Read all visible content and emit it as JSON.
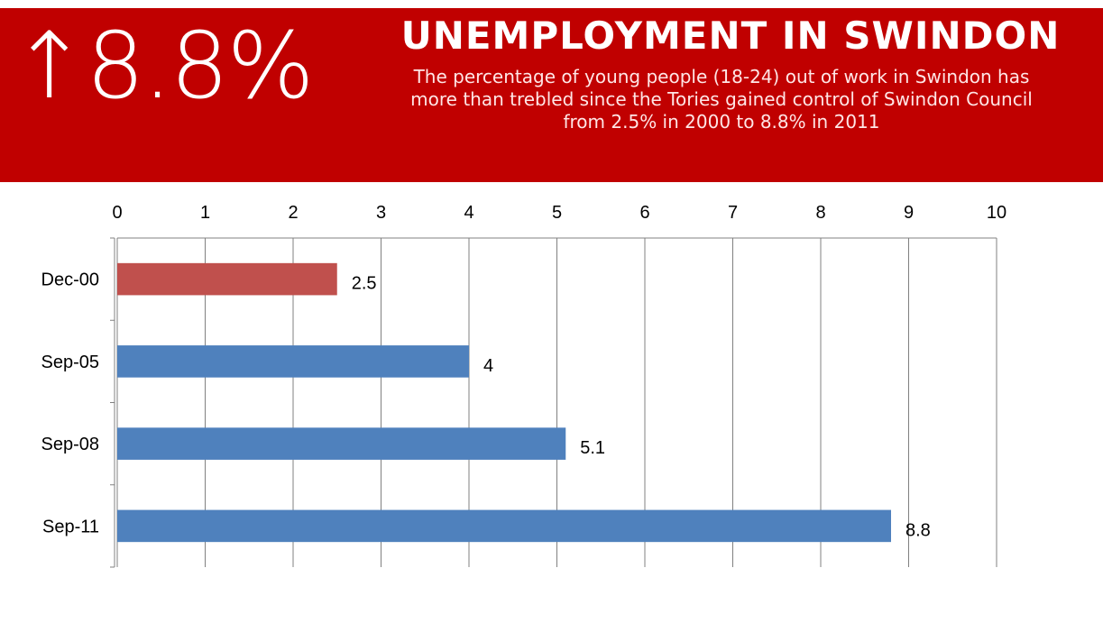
{
  "banner": {
    "stat": "↑8.8%",
    "title": "UNEMPLOYMENT IN SWINDON",
    "description": "The percentage of young people (18-24) out of work in Swindon has more than trebled since the Tories gained control of Swindon Council from 2.5% in 2000 to 8.8% in 2011"
  },
  "colors": {
    "banner": "#c00000",
    "highlight_bar": "#c0504d",
    "bar": "#4f81bd",
    "grid": "#808080"
  },
  "chart_data": {
    "type": "bar",
    "orientation": "horizontal",
    "categories": [
      "Dec-00",
      "Sep-05",
      "Sep-08",
      "Sep-11"
    ],
    "values": [
      2.5,
      4,
      5.1,
      8.8
    ],
    "data_labels": [
      "2.5",
      "4",
      "5.1",
      "8.8"
    ],
    "bar_colors": [
      "#c0504d",
      "#4f81bd",
      "#4f81bd",
      "#4f81bd"
    ],
    "xlim": [
      0,
      10
    ],
    "x_ticks": [
      "0",
      "1",
      "2",
      "3",
      "4",
      "5",
      "6",
      "7",
      "8",
      "9",
      "10"
    ],
    "x_axis_position": "top",
    "grid": true,
    "title": "",
    "xlabel": "",
    "ylabel": ""
  }
}
